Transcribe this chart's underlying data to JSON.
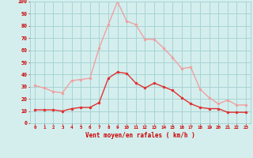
{
  "hours": [
    0,
    1,
    2,
    3,
    4,
    5,
    6,
    7,
    8,
    9,
    10,
    11,
    12,
    13,
    14,
    15,
    16,
    17,
    18,
    19,
    20,
    21,
    22,
    23
  ],
  "vent_moyen": [
    11,
    11,
    11,
    10,
    12,
    13,
    13,
    17,
    37,
    42,
    41,
    33,
    29,
    33,
    30,
    27,
    21,
    16,
    13,
    12,
    12,
    9,
    9,
    9
  ],
  "vent_rafales": [
    31,
    29,
    26,
    25,
    35,
    36,
    37,
    62,
    81,
    100,
    84,
    81,
    69,
    69,
    62,
    54,
    45,
    46,
    28,
    21,
    16,
    19,
    15,
    15
  ],
  "color_moyen": "#e03030",
  "color_rafales": "#f0a0a0",
  "bg_color": "#d4eeee",
  "grid_color": "#a8d4d4",
  "xlabel": "Vent moyen/en rafales ( km/h )",
  "xlabel_color": "#cc0000",
  "tick_color": "#cc0000",
  "yticks": [
    0,
    10,
    20,
    30,
    40,
    50,
    60,
    70,
    80,
    90,
    100
  ],
  "ylim": [
    0,
    100
  ],
  "xlim": [
    -0.5,
    23.5
  ]
}
